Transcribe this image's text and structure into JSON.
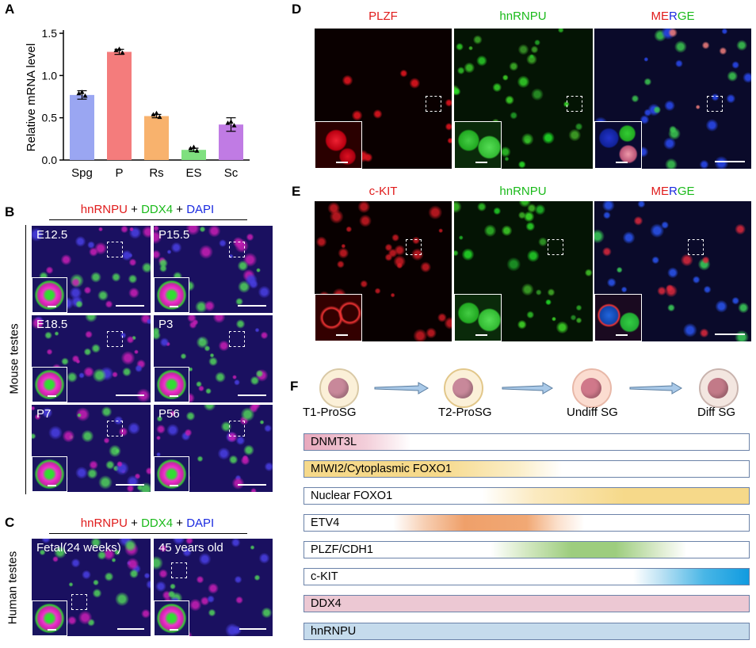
{
  "panels": {
    "a": "A",
    "b": "B",
    "c": "C",
    "d": "D",
    "e": "E",
    "f": "F"
  },
  "chart_data": {
    "type": "bar",
    "categories": [
      "Spg",
      "P",
      "Rs",
      "ES",
      "Sc"
    ],
    "values": [
      0.77,
      1.28,
      0.52,
      0.12,
      0.42
    ],
    "errors": [
      0.05,
      0.03,
      0.02,
      0.02,
      0.08
    ],
    "colors": [
      "#9aa6f2",
      "#f47c7c",
      "#f8b26d",
      "#7fe07f",
      "#c07be4"
    ],
    "ylabel": "Relative mRNA level",
    "xlabel": "",
    "ylim": [
      0,
      1.5
    ],
    "yticks": [
      "0.0",
      "0.5",
      "1.0",
      "1.5"
    ]
  },
  "panel_b": {
    "stain": {
      "part1": "hnRNPU",
      "plus1": " + ",
      "part2": "DDX4",
      "plus2": " + ",
      "part3": "DAPI"
    },
    "side_label": "Mouse testes",
    "tiles": [
      "E12.5",
      "P15.5",
      "E18.5",
      "P3",
      "P7",
      "P56"
    ]
  },
  "panel_c": {
    "stain": {
      "part1": "hnRNPU",
      "plus1": " + ",
      "part2": "DDX4",
      "plus2": " + ",
      "part3": "DAPI"
    },
    "side_label": "Human testes",
    "tiles": [
      "Fetal(24 weeks)",
      "45 years old"
    ]
  },
  "panel_d": {
    "ch1": "PLZF",
    "ch2": "hnRNPU",
    "merge": {
      "a": "ME",
      "b": "R",
      "c": "GE"
    }
  },
  "panel_e": {
    "ch1": "c-KIT",
    "ch2": "hnRNPU",
    "merge": {
      "a": "ME",
      "b": "R",
      "c": "GE"
    }
  },
  "panel_f": {
    "stages": [
      "T1-ProSG",
      "T2-ProSG",
      "Undiff SG",
      "Diff SG"
    ],
    "markers": [
      "DNMT3L",
      "MIWI2/Cytoplasmic FOXO1",
      "Nuclear FOXO1",
      "ETV4",
      "PLZF/CDH1",
      "c-KIT",
      "DDX4",
      "hnRNPU"
    ]
  }
}
